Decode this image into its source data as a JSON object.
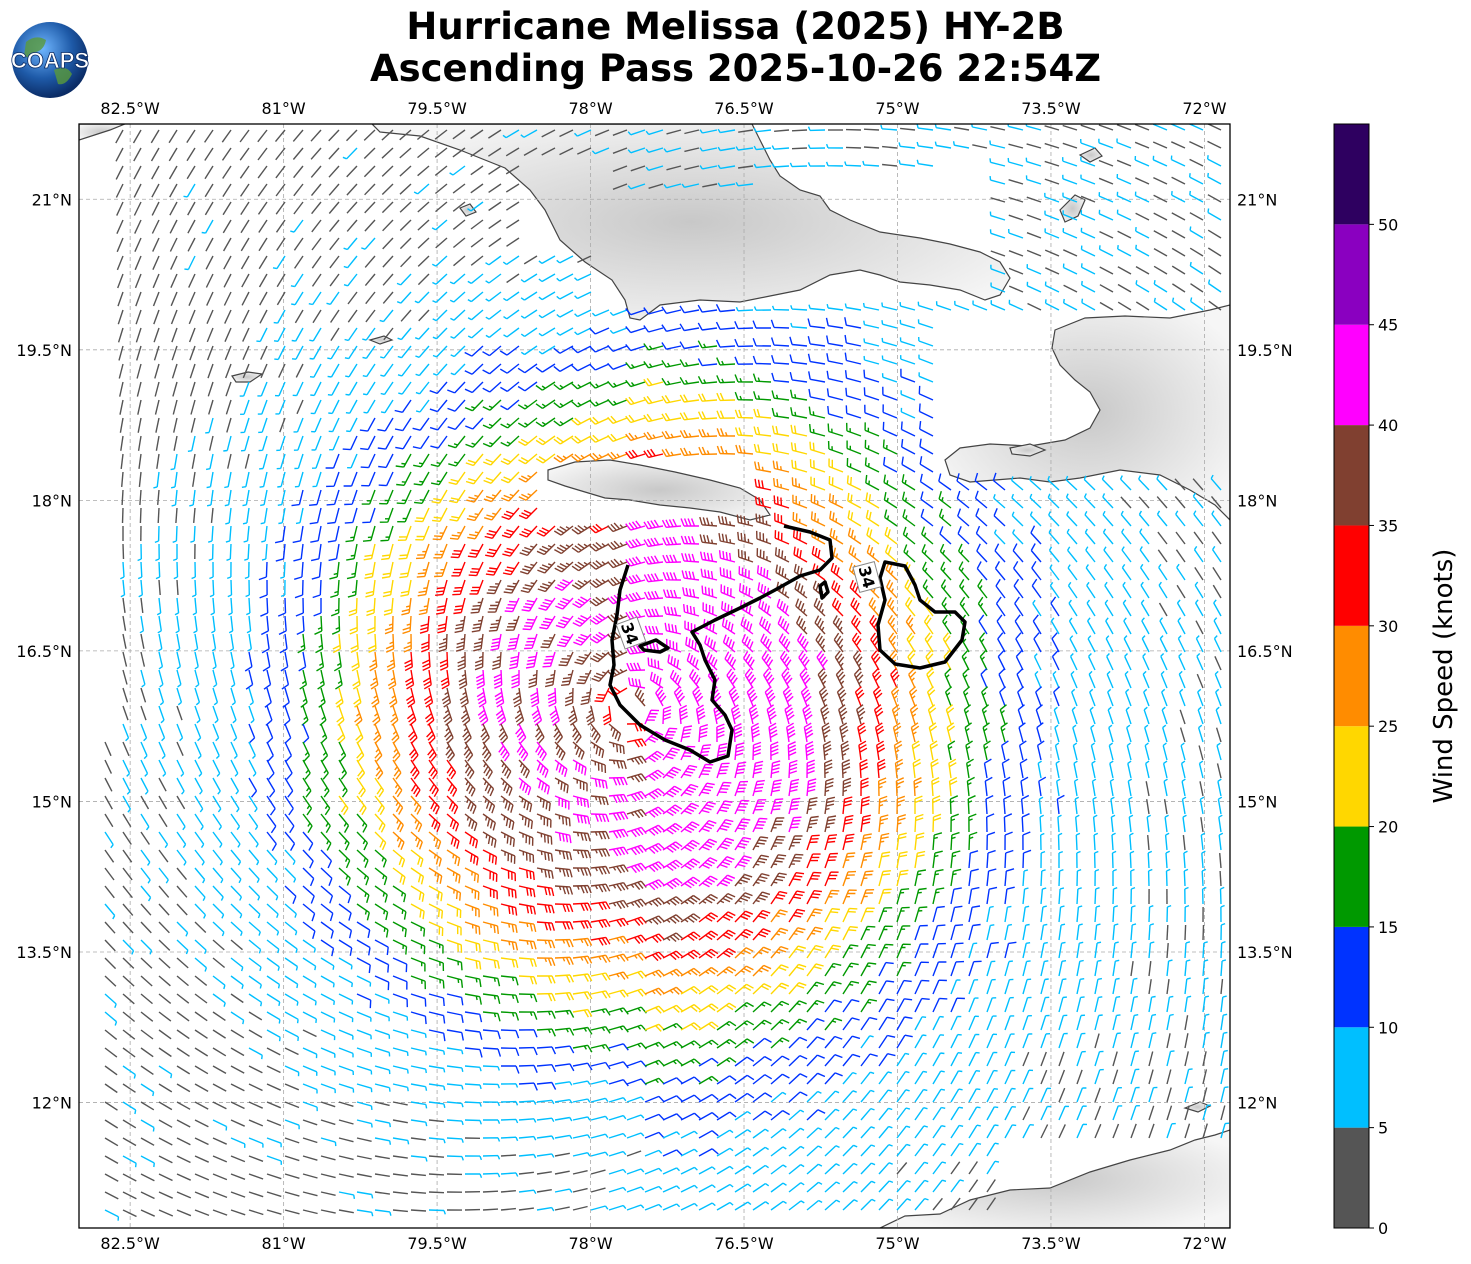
{
  "title": {
    "line1": "Hurricane Melissa (2025) HY-2B",
    "line2": "Ascending Pass 2025-10-26 22:54Z"
  },
  "logo": {
    "text": "COAPS",
    "icon": "globe-logo-icon"
  },
  "map": {
    "lon_range": [
      -83.0,
      -71.75
    ],
    "lat_range": [
      10.75,
      21.75
    ],
    "lon_ticks": [
      {
        "value": -82.5,
        "label": "82.5°W"
      },
      {
        "value": -81.0,
        "label": "81°W"
      },
      {
        "value": -79.5,
        "label": "79.5°W"
      },
      {
        "value": -78.0,
        "label": "78°W"
      },
      {
        "value": -76.5,
        "label": "76.5°W"
      },
      {
        "value": -75.0,
        "label": "75°W"
      },
      {
        "value": -73.5,
        "label": "73.5°W"
      },
      {
        "value": -72.0,
        "label": "72°W"
      }
    ],
    "lat_ticks": [
      {
        "value": 21.0,
        "label": "21°N"
      },
      {
        "value": 19.5,
        "label": "19.5°N"
      },
      {
        "value": 18.0,
        "label": "18°N"
      },
      {
        "value": 16.5,
        "label": "16.5°N"
      },
      {
        "value": 15.0,
        "label": "15°N"
      },
      {
        "value": 13.5,
        "label": "13.5°N"
      },
      {
        "value": 12.0,
        "label": "12°N"
      }
    ],
    "grid": true,
    "storm_center": {
      "lon": -77.6,
      "lat": 15.9
    },
    "wind_field_speed_range": [
      4,
      42
    ],
    "contour_34kt": {
      "label": "34",
      "west_loop_label_position": {
        "lon": -77.5,
        "lat": 16.8
      },
      "east_loop_label_position": {
        "lon": -75.2,
        "lat": 17.4
      }
    }
  },
  "colorbar": {
    "label": "Wind Speed (knots)",
    "bins": [
      {
        "min": 0,
        "max": 5,
        "color": "#555555"
      },
      {
        "min": 5,
        "max": 10,
        "color": "#00bfff"
      },
      {
        "min": 10,
        "max": 15,
        "color": "#0033ff"
      },
      {
        "min": 15,
        "max": 20,
        "color": "#009900"
      },
      {
        "min": 20,
        "max": 25,
        "color": "#ffd700"
      },
      {
        "min": 25,
        "max": 30,
        "color": "#ff8c00"
      },
      {
        "min": 30,
        "max": 35,
        "color": "#ff0000"
      },
      {
        "min": 35,
        "max": 40,
        "color": "#804030"
      },
      {
        "min": 40,
        "max": 45,
        "color": "#ff00ff"
      },
      {
        "min": 45,
        "max": 50,
        "color": "#8a00c0"
      },
      {
        "min": 50,
        "max": 55,
        "color": "#2e0060"
      }
    ],
    "ticks": [
      "0",
      "5",
      "10",
      "15",
      "20",
      "25",
      "30",
      "35",
      "40",
      "45",
      "50"
    ]
  }
}
